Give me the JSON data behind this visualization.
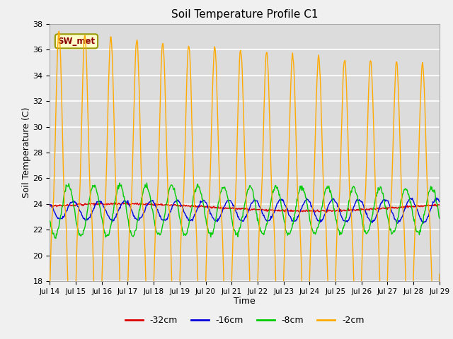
{
  "title": "Soil Temperature Profile C1",
  "xlabel": "Time",
  "ylabel": "Soil Temperature (C)",
  "ylim": [
    18,
    38
  ],
  "yticks": [
    18,
    20,
    22,
    24,
    26,
    28,
    30,
    32,
    34,
    36,
    38
  ],
  "colors": {
    "-32cm": "#dd0000",
    "-16cm": "#0000dd",
    "-8cm": "#00cc00",
    "-2cm": "#ffaa00"
  },
  "legend_labels": [
    "-32cm",
    "-16cm",
    "-8cm",
    "-2cm"
  ],
  "annotation_text": "SW_met",
  "annotation_color": "#8b0000",
  "annotation_bg": "#ffffcc",
  "plot_bg_color": "#dcdcdc",
  "fig_bg_color": "#f0f0f0",
  "grid_color": "#ffffff",
  "n_points": 720,
  "start_day": 14,
  "end_day": 29,
  "tick_days": [
    14,
    15,
    16,
    17,
    18,
    19,
    20,
    21,
    22,
    23,
    24,
    25,
    26,
    27,
    28,
    29
  ]
}
